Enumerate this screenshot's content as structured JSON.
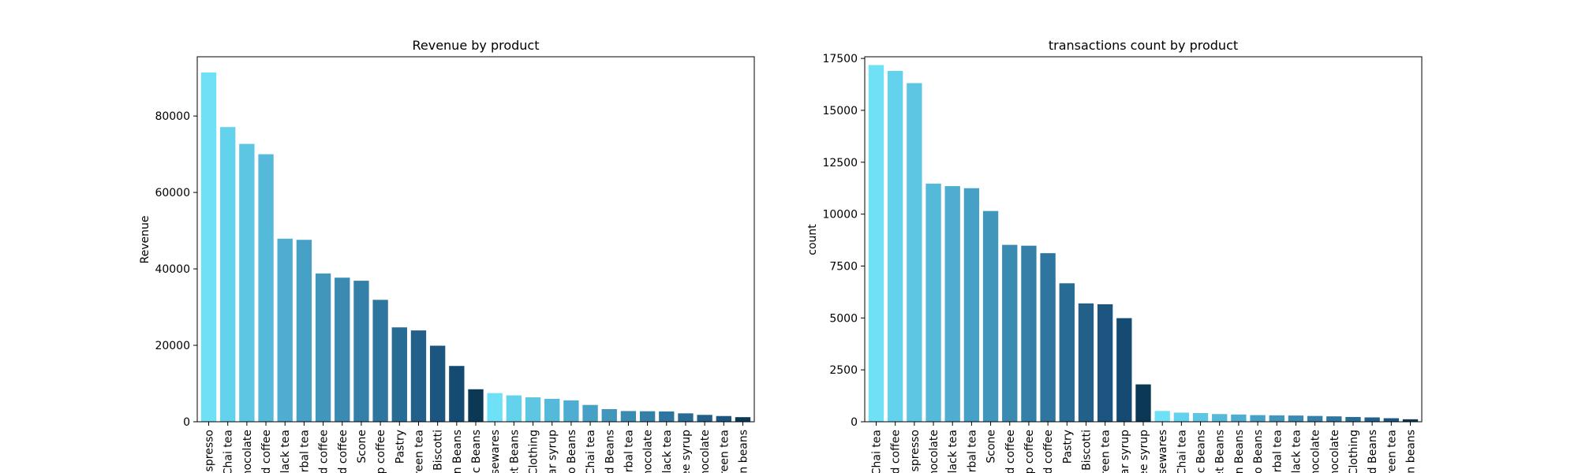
{
  "chart_data": [
    {
      "type": "bar",
      "title": "Revenue by product",
      "xlabel": "",
      "ylabel": "Revenue",
      "ylim": [
        0,
        95500
      ],
      "yticks": [
        0,
        20000,
        40000,
        60000,
        80000
      ],
      "ytick_labels": [
        "0",
        "20000",
        "40000",
        "60000",
        "80000"
      ],
      "categories": [
        "spresso",
        "Chai tea",
        "nocolate",
        "d coffee",
        "lack tea",
        "rbal tea",
        "d coffee",
        "d coffee",
        "Scone",
        "p coffee",
        "Pastry",
        "reen tea",
        "Biscotti",
        "n Beans",
        "c Beans",
        "sewares",
        "et Beans",
        "Clothing",
        "ar syrup",
        "o Beans",
        "Chai tea",
        "d Beans",
        "rbal tea",
        "nocolate",
        "lack tea",
        "ee syrup",
        "nocolate",
        "reen tea",
        "n beans"
      ],
      "values": [
        91400,
        77100,
        72700,
        70000,
        47900,
        47600,
        38800,
        37700,
        36900,
        31900,
        24700,
        23900,
        19900,
        14600,
        8500,
        7500,
        6900,
        6400,
        6000,
        5600,
        4400,
        3300,
        2800,
        2750,
        2700,
        2200,
        1800,
        1500,
        1200
      ],
      "colors": [
        "#6ee1f6",
        "#63d2ec",
        "#5dc6e3",
        "#55b9d9",
        "#4eadd0",
        "#47a1c6",
        "#4196bc",
        "#3b8ab2",
        "#3480a8",
        "#2e759f",
        "#286b94",
        "#22608a",
        "#1c5680",
        "#154b73",
        "#0b3854",
        "#6ee1f6",
        "#63d2ec",
        "#5dc6e3",
        "#55b9d9",
        "#4eadd0",
        "#47a1c6",
        "#4196bc",
        "#3b8ab2",
        "#3480a8",
        "#2e759f",
        "#286b94",
        "#22608a",
        "#1c5680",
        "#0b3854"
      ]
    },
    {
      "type": "bar",
      "title": "transactions count by product",
      "xlabel": "",
      "ylabel": "count",
      "ylim": [
        0,
        17580
      ],
      "yticks": [
        0,
        2500,
        5000,
        7500,
        10000,
        12500,
        15000,
        17500
      ],
      "ytick_labels": [
        "0",
        "2500",
        "5000",
        "7500",
        "10000",
        "12500",
        "15000",
        "17500"
      ],
      "categories": [
        "Chai tea",
        "d coffee",
        "spresso",
        "nocolate",
        "lack tea",
        "rbal tea",
        "Scone",
        "d coffee",
        "p coffee",
        "d coffee",
        "Pastry",
        "Biscotti",
        "reen tea",
        "ar syrup",
        "ee syrup",
        "sewares",
        "Chai tea",
        "c Beans",
        "et Beans",
        "n Beans",
        "o Beans",
        "rbal tea",
        "lack tea",
        "nocolate",
        "nocolate",
        "Clothing",
        "d Beans",
        "reen tea",
        "n beans"
      ],
      "values": [
        17180,
        16900,
        16310,
        11470,
        11350,
        11250,
        10150,
        8520,
        8480,
        8120,
        6670,
        5700,
        5660,
        4990,
        1800,
        520,
        440,
        420,
        370,
        350,
        320,
        310,
        300,
        280,
        260,
        230,
        210,
        170,
        120
      ],
      "colors": [
        "#6ee1f6",
        "#63d2ec",
        "#5dc6e3",
        "#55b9d9",
        "#4eadd0",
        "#47a1c6",
        "#4196bc",
        "#3b8ab2",
        "#3480a8",
        "#2e759f",
        "#286b94",
        "#22608a",
        "#1c5680",
        "#154b73",
        "#0b3854",
        "#6ee1f6",
        "#63d2ec",
        "#5dc6e3",
        "#55b9d9",
        "#4eadd0",
        "#47a1c6",
        "#4196bc",
        "#3b8ab2",
        "#3480a8",
        "#2e759f",
        "#286b94",
        "#22608a",
        "#1c5680",
        "#0b3854"
      ]
    }
  ]
}
